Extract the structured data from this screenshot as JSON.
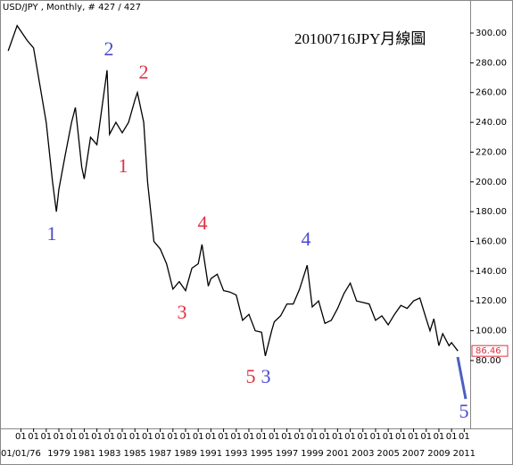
{
  "chart_data": {
    "type": "line",
    "header": "USD/JPY , Monthly, # 427 / 427",
    "title": "20100716JPY月線圖",
    "x": [
      1975.0,
      1975.7,
      1976.5,
      1977.0,
      1977.5,
      1978.0,
      1978.5,
      1978.8,
      1979.0,
      1979.5,
      1980.0,
      1980.3,
      1980.8,
      1981.0,
      1981.5,
      1982.0,
      1982.8,
      1983.0,
      1983.5,
      1984.0,
      1984.5,
      1985.0,
      1985.2,
      1985.7,
      1986.0,
      1986.5,
      1987.0,
      1987.5,
      1988.0,
      1988.5,
      1989.0,
      1989.5,
      1990.0,
      1990.3,
      1990.8,
      1991.0,
      1991.5,
      1992.0,
      1992.5,
      1993.0,
      1993.5,
      1994.0,
      1994.5,
      1995.0,
      1995.3,
      1995.8,
      1996.0,
      1996.5,
      1997.0,
      1997.5,
      1998.0,
      1998.6,
      1999.0,
      1999.5,
      2000.0,
      2000.5,
      2001.0,
      2001.5,
      2002.0,
      2002.5,
      2003.0,
      2003.5,
      2004.0,
      2004.5,
      2005.0,
      2005.5,
      2006.0,
      2006.5,
      2007.0,
      2007.5,
      2008.0,
      2008.3,
      2008.6,
      2009.0,
      2009.3,
      2009.8,
      2010.0,
      2010.5
    ],
    "series": [
      {
        "color": "#000000",
        "values": [
          288,
          305,
          295,
          290,
          265,
          240,
          200,
          180,
          195,
          218,
          240,
          250,
          210,
          202,
          230,
          225,
          275,
          232,
          240,
          233,
          240,
          255,
          260,
          240,
          200,
          160,
          155,
          145,
          128,
          133,
          127,
          142,
          145,
          158,
          130,
          135,
          138,
          127,
          126,
          124,
          107,
          111,
          100,
          99,
          83,
          100,
          106,
          110,
          118,
          118,
          128,
          144,
          116,
          120,
          105,
          107,
          115,
          125,
          132,
          120,
          119,
          118,
          107,
          110,
          104,
          111,
          117,
          115,
          120,
          122,
          108,
          100,
          108,
          90,
          98,
          90,
          92,
          86.46
        ]
      }
    ],
    "current_price": 86.46,
    "xlim": [
      1974.35,
      2011.47
    ],
    "ylim": [
      34.4,
      322.2
    ],
    "yticks": [
      {
        "value": 80,
        "label": "80.00"
      },
      {
        "value": 100,
        "label": "100.00"
      },
      {
        "value": 120,
        "label": "120.00"
      },
      {
        "value": 140,
        "label": "140.00"
      },
      {
        "value": 160,
        "label": "160.00"
      },
      {
        "value": 180,
        "label": "180.00"
      },
      {
        "value": 200,
        "label": "200.00"
      },
      {
        "value": 220,
        "label": "220.00"
      },
      {
        "value": 240,
        "label": "240.00"
      },
      {
        "value": 260,
        "label": "260.00"
      },
      {
        "value": 280,
        "label": "280.00"
      },
      {
        "value": 300,
        "label": "300.00"
      }
    ],
    "xticks": [
      {
        "value": 1976,
        "label": "01"
      },
      {
        "value": 1977,
        "label": "01"
      },
      {
        "value": 1978,
        "label": "01"
      },
      {
        "value": 1979,
        "label": "01"
      },
      {
        "value": 1980,
        "label": "01"
      },
      {
        "value": 1981,
        "label": "01"
      },
      {
        "value": 1982,
        "label": "01"
      },
      {
        "value": 1983,
        "label": "01"
      },
      {
        "value": 1984,
        "label": "01"
      },
      {
        "value": 1985,
        "label": "01"
      },
      {
        "value": 1986,
        "label": "01"
      },
      {
        "value": 1987,
        "label": "01"
      },
      {
        "value": 1988,
        "label": "01"
      },
      {
        "value": 1989,
        "label": "01"
      },
      {
        "value": 1990,
        "label": "01"
      },
      {
        "value": 1991,
        "label": "01"
      },
      {
        "value": 1992,
        "label": "01"
      },
      {
        "value": 1993,
        "label": "01"
      },
      {
        "value": 1994,
        "label": "01"
      },
      {
        "value": 1995,
        "label": "01"
      },
      {
        "value": 1996,
        "label": "01"
      },
      {
        "value": 1997,
        "label": "01"
      },
      {
        "value": 1998,
        "label": "01"
      },
      {
        "value": 1999,
        "label": "01"
      },
      {
        "value": 2000,
        "label": "01"
      },
      {
        "value": 2001,
        "label": "01"
      },
      {
        "value": 2002,
        "label": "01"
      },
      {
        "value": 2003,
        "label": "01"
      },
      {
        "value": 2004,
        "label": "01"
      },
      {
        "value": 2005,
        "label": "01"
      },
      {
        "value": 2006,
        "label": "01"
      },
      {
        "value": 2007,
        "label": "01"
      },
      {
        "value": 2008,
        "label": "01"
      },
      {
        "value": 2009,
        "label": "01"
      },
      {
        "value": 2010,
        "label": "01"
      },
      {
        "value": 2011,
        "label": "01"
      }
    ],
    "xticks_year": [
      {
        "value": 1976,
        "label": "01/01/76"
      },
      1979,
      1981,
      1983,
      1985,
      1987,
      1989,
      1991,
      1993,
      1995,
      1997,
      1999,
      2001,
      2003,
      2005,
      2007,
      2009,
      2011
    ],
    "annotations": [
      {
        "text": "1",
        "color": "#4a4ad0"
      },
      {
        "text": "2",
        "color": "#4a4ad0"
      },
      {
        "text": "2",
        "color": "#e03040"
      },
      {
        "text": "1",
        "color": "#e03040"
      },
      {
        "text": "4",
        "color": "#e03040"
      },
      {
        "text": "3",
        "color": "#e03040"
      },
      {
        "text": "4",
        "color": "#4a4ad0"
      },
      {
        "text": "5",
        "color": "#e03040"
      },
      {
        "text": "3",
        "color": "#4a4ad0"
      },
      {
        "text": "5",
        "color": "#4a4ad0"
      }
    ]
  }
}
